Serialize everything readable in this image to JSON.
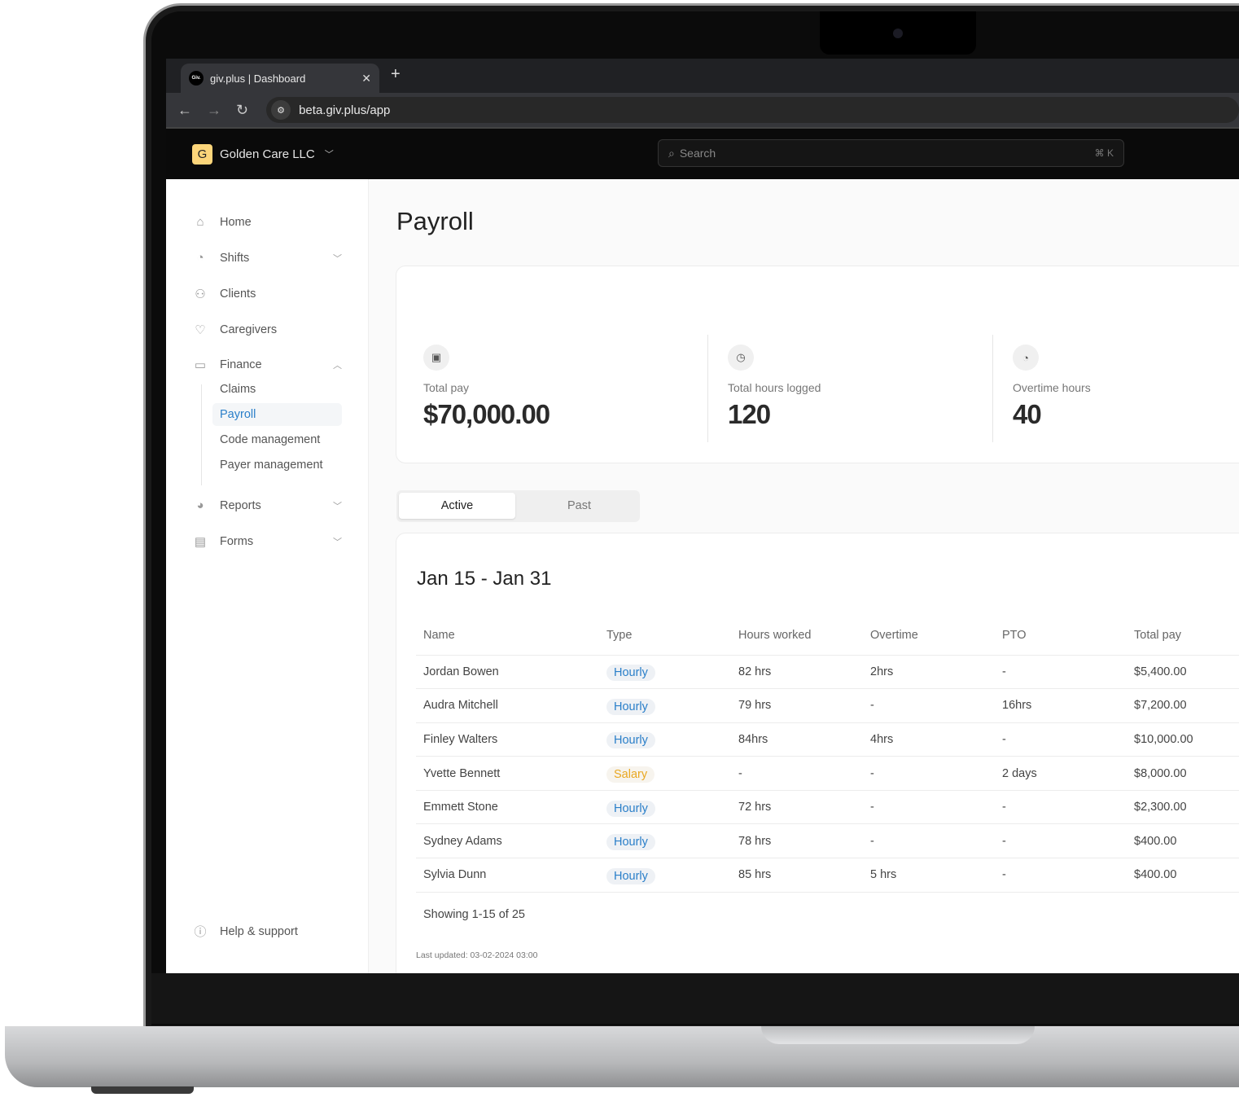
{
  "browser": {
    "tab_title": "giv.plus | Dashboard",
    "favicon_text": "Giv.",
    "url": "beta.giv.plus/app"
  },
  "app": {
    "org_initial": "G",
    "org_name": "Golden Care LLC",
    "search_placeholder": "Search",
    "search_shortcut": "⌘ K"
  },
  "sidebar": {
    "items": [
      {
        "label": "Home",
        "icon": "home-icon"
      },
      {
        "label": "Shifts",
        "icon": "clock-user-icon"
      },
      {
        "label": "Clients",
        "icon": "users-icon"
      },
      {
        "label": "Caregivers",
        "icon": "hand-heart-icon"
      },
      {
        "label": "Finance",
        "icon": "card-icon"
      },
      {
        "label": "Reports",
        "icon": "pie-chart-icon"
      },
      {
        "label": "Forms",
        "icon": "form-icon"
      }
    ],
    "finance_sub": [
      "Claims",
      "Payroll",
      "Code management",
      "Payer management"
    ],
    "active": "Payroll",
    "help": "Help & support"
  },
  "page": {
    "title": "Payroll"
  },
  "stats": [
    {
      "label": "Total pay",
      "value": "$70,000.00",
      "icon": "money-icon"
    },
    {
      "label": "Total hours logged",
      "value": "120",
      "icon": "clock-icon"
    },
    {
      "label": "Overtime hours",
      "value": "40",
      "icon": "timer-icon"
    }
  ],
  "tabs": {
    "active": "Active",
    "past": "Past"
  },
  "period": {
    "title": "Jan 15 - Jan 31",
    "columns": [
      "Name",
      "Type",
      "Hours worked",
      "Overtime",
      "PTO",
      "Total pay"
    ],
    "rows": [
      [
        "Jordan Bowen",
        "Hourly",
        "82 hrs",
        "2hrs",
        "-",
        "$5,400.00"
      ],
      [
        "Audra Mitchell",
        "Hourly",
        "79 hrs",
        "-",
        "16hrs",
        "$7,200.00"
      ],
      [
        "Finley Walters",
        "Hourly",
        "84hrs",
        "4hrs",
        "-",
        "$10,000.00"
      ],
      [
        "Yvette Bennett",
        "Salary",
        "-",
        "-",
        "2 days",
        "$8,000.00"
      ],
      [
        "Emmett Stone",
        "Hourly",
        "72 hrs",
        "-",
        "-",
        "$2,300.00"
      ],
      [
        "Sydney Adams",
        "Hourly",
        "78 hrs",
        "-",
        "-",
        "$400.00"
      ],
      [
        "Sylvia Dunn",
        "Hourly",
        "85 hrs",
        "5 hrs",
        "-",
        "$400.00"
      ]
    ],
    "showing": "Showing 1-15 of 25",
    "last_updated": "Last updated: 03-02-2024 03:00"
  },
  "colors": {
    "accent": "#2a7fc9",
    "salary": "#e9a823",
    "logo": "#fcd57a"
  }
}
